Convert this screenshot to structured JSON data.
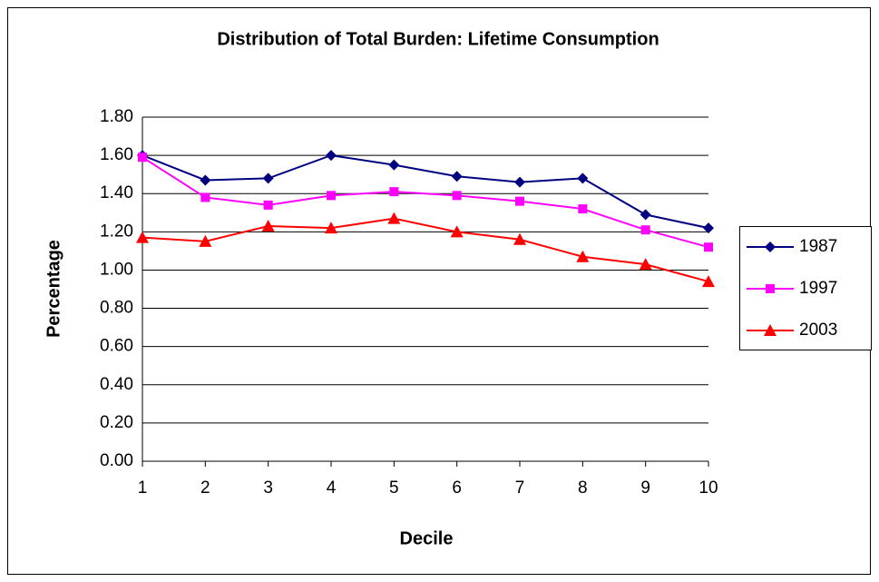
{
  "chart_data": {
    "type": "line",
    "title": "Distribution of Total Burden: Lifetime Consumption",
    "x_label": "Decile",
    "y_label": "Percentage",
    "x": [
      1,
      2,
      3,
      4,
      5,
      6,
      7,
      8,
      9,
      10
    ],
    "xlim": [
      1,
      10
    ],
    "xticks": [
      1,
      2,
      3,
      4,
      5,
      6,
      7,
      8,
      9,
      10
    ],
    "ylim": [
      0,
      1.8
    ],
    "yticks": [
      {
        "value": 0,
        "label": "0.00"
      },
      {
        "value": 0.2,
        "label": "0.20"
      },
      {
        "value": 0.4,
        "label": "0.40"
      },
      {
        "value": 0.6,
        "label": "0.60"
      },
      {
        "value": 0.8,
        "label": "0.80"
      },
      {
        "value": 1,
        "label": "1.00"
      },
      {
        "value": 1.2,
        "label": "1.20"
      },
      {
        "value": 1.4,
        "label": "1.40"
      },
      {
        "value": 1.6,
        "label": "1.60"
      },
      {
        "value": 1.8,
        "label": "1.80"
      }
    ],
    "grid": true,
    "legend": "right",
    "series": [
      {
        "name": "1987",
        "color": "#000080",
        "marker": "diamond",
        "values": [
          1.6,
          1.47,
          1.48,
          1.6,
          1.55,
          1.49,
          1.46,
          1.48,
          1.29,
          1.22
        ]
      },
      {
        "name": "1997",
        "color": "#ff00ff",
        "marker": "square",
        "values": [
          1.59,
          1.38,
          1.34,
          1.39,
          1.41,
          1.39,
          1.36,
          1.32,
          1.21,
          1.12
        ]
      },
      {
        "name": "2003",
        "color": "#ff0000",
        "marker": "triangle",
        "values": [
          1.17,
          1.15,
          1.23,
          1.22,
          1.27,
          1.2,
          1.16,
          1.07,
          1.03,
          0.94
        ]
      }
    ]
  }
}
